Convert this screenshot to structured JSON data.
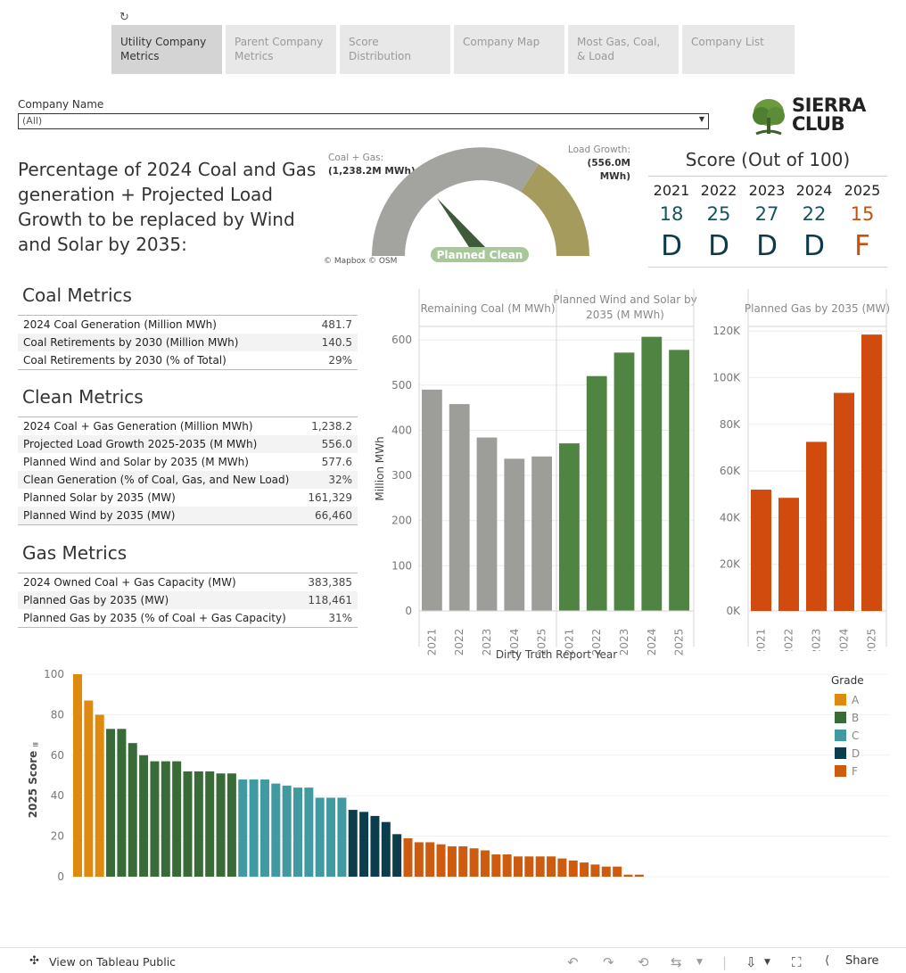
{
  "tabs": [
    {
      "label": "Utility Company Metrics",
      "active": true
    },
    {
      "label": "Parent Company Metrics",
      "active": false
    },
    {
      "label": "Score Distribution",
      "active": false
    },
    {
      "label": "Company Map",
      "active": false
    },
    {
      "label": "Most Gas, Coal, & Load",
      "active": false
    },
    {
      "label": "Company List",
      "active": false
    }
  ],
  "filter": {
    "label": "Company Name",
    "value": "(All)"
  },
  "logo": {
    "line1": "SIERRA",
    "line2": "CLUB",
    "icon": "tree-icon"
  },
  "question": "Percentage of 2024 Coal and Gas generation + Projected Load Growth to be replaced by Wind and Solar by 2035:",
  "gauge": {
    "left_label": "Coal + Gas:",
    "left_value": "(1,238.2M MWh)",
    "right_label": "Load Growth:",
    "right_value": "(556.0M MWh)",
    "center_label": "Planned Clean",
    "attribution": "© Mapbox  © OSM",
    "colors": {
      "gray": "#a3a3a0",
      "olive": "#a59b5c",
      "needle": "#3d5a3a",
      "pill": "#a8c79b"
    }
  },
  "score": {
    "title": "Score (Out of 100)",
    "years": [
      "2021",
      "2022",
      "2023",
      "2024",
      "2025"
    ],
    "values": [
      "18",
      "25",
      "27",
      "22",
      "15"
    ],
    "grades": [
      "D",
      "D",
      "D",
      "D",
      "F"
    ],
    "colors": {
      "D": "#0b3b4a",
      "F": "#c4520e",
      "value": "#17535a",
      "value_f": "#c4520e"
    }
  },
  "coal": {
    "title": "Coal Metrics",
    "rows": [
      {
        "label": "2024 Coal Generation (Million MWh)",
        "value": "481.7"
      },
      {
        "label": "Coal Retirements by 2030 (Million MWh)",
        "value": "140.5"
      },
      {
        "label": "Coal Retirements by 2030 (% of Total)",
        "value": "29%"
      }
    ]
  },
  "clean": {
    "title": "Clean Metrics",
    "rows": [
      {
        "label": "2024 Coal + Gas Generation (Million MWh)",
        "value": "1,238.2"
      },
      {
        "label": "Projected Load Growth 2025-2035 (M MWh)",
        "value": "556.0"
      },
      {
        "label": "Planned Wind and Solar by 2035 (M MWh)",
        "value": "577.6"
      },
      {
        "label": "Clean Generation (% of Coal, Gas, and New Load)",
        "value": "32%"
      },
      {
        "label": "Planned Solar by 2035 (MW)",
        "value": "161,329"
      },
      {
        "label": "Planned Wind by 2035 (MW)",
        "value": "66,460"
      }
    ]
  },
  "gas": {
    "title": "Gas Metrics",
    "rows": [
      {
        "label": "2024 Owned Coal + Gas Capacity (MW)",
        "value": "383,385"
      },
      {
        "label": "Planned Gas by 2035 (MW)",
        "value": "118,461"
      },
      {
        "label": "Planned Gas by 2035 (% of Coal + Gas Capacity)",
        "value": "31%"
      }
    ]
  },
  "chart_data": [
    {
      "type": "bar",
      "title": "",
      "ylabel": "Million MWh",
      "xlabel": "Dirty Truth Report Year",
      "ylim": [
        0,
        630
      ],
      "yticks": [
        "0",
        "100",
        "200",
        "300",
        "400",
        "500",
        "600"
      ],
      "panels": [
        {
          "name": "Remaining Coal (M MWh)",
          "color": "#9d9d99",
          "categories": [
            "2021",
            "2022",
            "2023",
            "2024",
            "2025"
          ],
          "values": [
            490,
            458,
            384,
            337,
            342
          ]
        },
        {
          "name": "Planned Wind and Solar by 2035 (M MWh)",
          "color": "#4f8442",
          "categories": [
            "2021",
            "2022",
            "2023",
            "2024",
            "2025"
          ],
          "values": [
            371,
            520,
            572,
            607,
            578
          ]
        }
      ]
    },
    {
      "type": "bar",
      "title": "",
      "ylabel": "",
      "ylim": [
        0,
        122000
      ],
      "yticks": [
        "0K",
        "20K",
        "40K",
        "60K",
        "80K",
        "100K",
        "120K"
      ],
      "panels": [
        {
          "name": "Planned Gas by 2035 (MW)",
          "color": "#d14a0e",
          "categories": [
            "2021",
            "2022",
            "2023",
            "2024",
            "2025"
          ],
          "values": [
            52000,
            48500,
            72500,
            93500,
            118500
          ]
        }
      ]
    },
    {
      "type": "bar",
      "title": "",
      "ylabel": "2025 Score",
      "xlabel": "",
      "ylim": [
        0,
        100
      ],
      "yticks": [
        "0",
        "20",
        "40",
        "60",
        "80",
        "100"
      ],
      "legend": {
        "title": "Grade",
        "position": "right",
        "items": [
          {
            "label": "A",
            "color": "#dd8a0e"
          },
          {
            "label": "B",
            "color": "#386b37"
          },
          {
            "label": "C",
            "color": "#4199a1"
          },
          {
            "label": "D",
            "color": "#0b3d4c"
          },
          {
            "label": "F",
            "color": "#cd5c10"
          }
        ]
      },
      "values": [
        100,
        87,
        80,
        73,
        73,
        66,
        60,
        57,
        57,
        57,
        52,
        52,
        52,
        51,
        51,
        48,
        48,
        48,
        46,
        45,
        44,
        44,
        39,
        39,
        39,
        33,
        32,
        30,
        27,
        21,
        19,
        17,
        17,
        16,
        15,
        15,
        14,
        13,
        11,
        11,
        10,
        10,
        10,
        10,
        9,
        8,
        7,
        6,
        5,
        5,
        1,
        1
      ],
      "grades": [
        "A",
        "A",
        "A",
        "B",
        "B",
        "B",
        "B",
        "B",
        "B",
        "B",
        "B",
        "B",
        "B",
        "B",
        "B",
        "C",
        "C",
        "C",
        "C",
        "C",
        "C",
        "C",
        "C",
        "C",
        "C",
        "D",
        "D",
        "D",
        "D",
        "D",
        "F",
        "F",
        "F",
        "F",
        "F",
        "F",
        "F",
        "F",
        "F",
        "F",
        "F",
        "F",
        "F",
        "F",
        "F",
        "F",
        "F",
        "F",
        "F",
        "F",
        "F",
        "F"
      ]
    }
  ],
  "footer": {
    "link": "View on Tableau Public",
    "share": "Share",
    "icons": [
      "tableau-icon",
      "undo-icon",
      "redo-icon",
      "revert-icon",
      "refresh-data-icon",
      "download-icon",
      "fullscreen-icon",
      "share-icon"
    ]
  }
}
